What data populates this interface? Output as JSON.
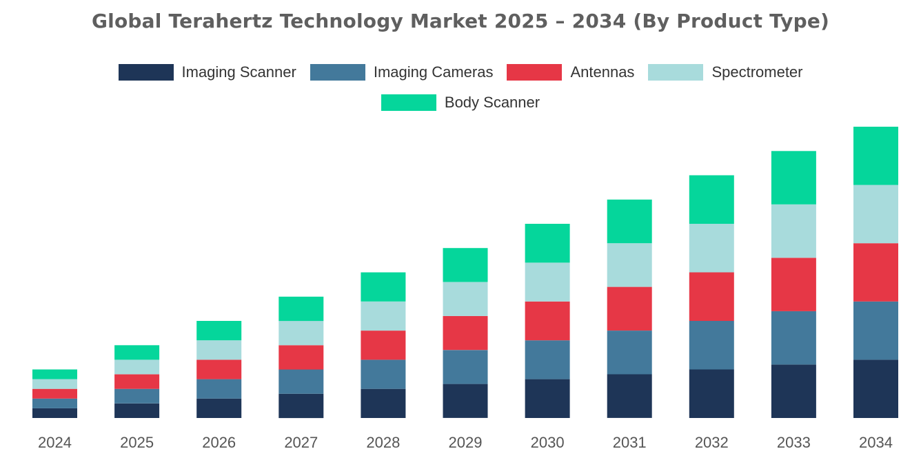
{
  "chart_data": {
    "type": "bar",
    "stacked": true,
    "title": "Global Terahertz Technology Market 2025 – 2034 (By Product Type)",
    "xlabel": "",
    "ylabel": "",
    "grid": false,
    "legend_position": "top-center",
    "ylim": [
      0,
      600
    ],
    "categories": [
      "2024",
      "2025",
      "2026",
      "2027",
      "2028",
      "2029",
      "2030",
      "2031",
      "2032",
      "2033",
      "2034"
    ],
    "series": [
      {
        "name": "Imaging Scanner",
        "color": "#1e3557",
        "values": [
          20,
          30,
          40,
          50,
          60,
          70,
          80,
          90,
          100,
          110,
          120
        ]
      },
      {
        "name": "Imaging Cameras",
        "color": "#43799b",
        "values": [
          20,
          30,
          40,
          50,
          60,
          70,
          80,
          90,
          100,
          110,
          120
        ]
      },
      {
        "name": "Antennas",
        "color": "#e63746",
        "values": [
          20,
          30,
          40,
          50,
          60,
          70,
          80,
          90,
          100,
          110,
          120
        ]
      },
      {
        "name": "Spectrometer",
        "color": "#a8dbdc",
        "values": [
          20,
          30,
          40,
          50,
          60,
          70,
          80,
          90,
          100,
          110,
          120
        ]
      },
      {
        "name": "Body Scanner",
        "color": "#05d69b",
        "values": [
          20,
          30,
          40,
          50,
          60,
          70,
          80,
          90,
          100,
          110,
          120
        ]
      }
    ]
  }
}
